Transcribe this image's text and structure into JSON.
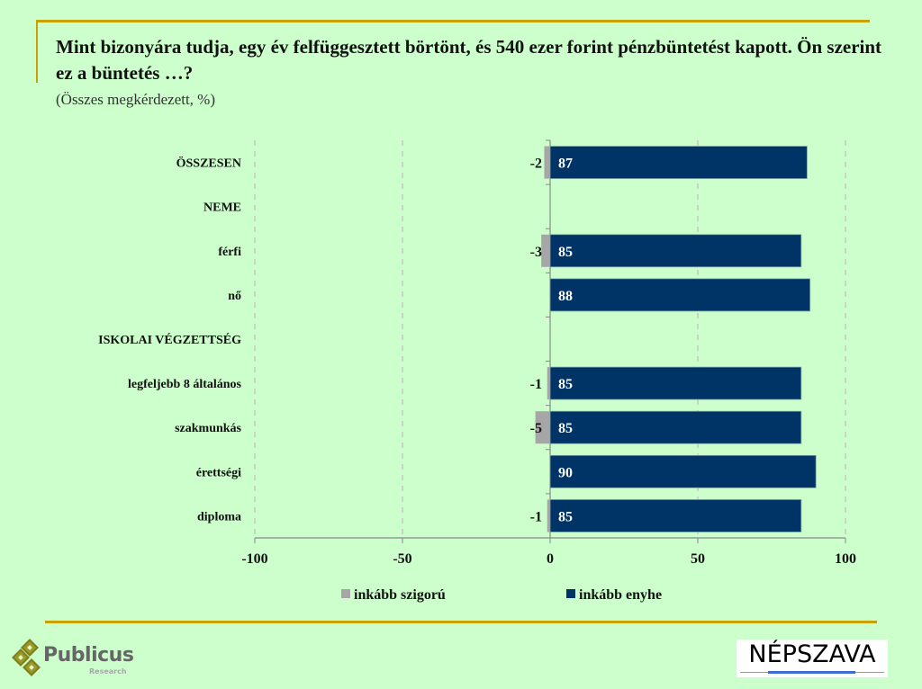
{
  "header": {
    "title": "Mint bizonyára tudja, egy év felfüggesztett börtönt, és 540 ezer forint pénzbüntetést kapott. Ön szerint ez a büntetés …?",
    "subtitle": "(Összes megkérdezett, %)"
  },
  "colors": {
    "background": "#ccffcc",
    "accent_line": "#c8a000",
    "series_strict": "#a6a6a6",
    "series_lenient": "#003366"
  },
  "chart_data": {
    "type": "bar",
    "orientation": "horizontal",
    "stacked": "diverging",
    "title": "Mint bizonyára tudja, egy év felfüggesztett börtönt, és 540 ezer forint pénzbüntetést kapott. Ön szerint ez a büntetés …?",
    "subtitle": "(Összes megkérdezett, %)",
    "xlabel": "",
    "ylabel": "",
    "xlim": [
      -100,
      100
    ],
    "xticks": [
      -100,
      -50,
      0,
      50,
      100
    ],
    "xtick_labels": [
      "-100",
      "-50",
      "0",
      "50",
      "100"
    ],
    "grid": "vertical dashed",
    "legend_position": "bottom",
    "categories": [
      "ÖSSZESEN",
      "NEME",
      "férfi",
      "nő",
      "ISKOLAI VÉGZETTSÉG",
      "legfeljebb 8 általános",
      "szakmunkás",
      "érettségi",
      "diploma"
    ],
    "category_is_header": [
      false,
      true,
      false,
      false,
      true,
      false,
      false,
      false,
      false
    ],
    "series": [
      {
        "name": "inkább szigorú",
        "color": "#a6a6a6",
        "values": [
          -2,
          null,
          -3,
          0,
          null,
          -1,
          -5,
          0,
          -1
        ],
        "labels": [
          "-2",
          "",
          "-3",
          "",
          "",
          "-1",
          "-5",
          "",
          "-1"
        ]
      },
      {
        "name": "inkább enyhe",
        "color": "#003366",
        "values": [
          87,
          null,
          85,
          88,
          null,
          85,
          85,
          90,
          85
        ],
        "labels": [
          "87",
          "",
          "85",
          "88",
          "",
          "85",
          "85",
          "90",
          "85"
        ]
      }
    ]
  },
  "legend": {
    "items": [
      {
        "label": "inkább szigorú"
      },
      {
        "label": "inkább enyhe"
      }
    ]
  },
  "footer": {
    "publicus_name": "Publicus",
    "publicus_sub": "Research",
    "nepszava_name": "NÉPSZAVA"
  }
}
